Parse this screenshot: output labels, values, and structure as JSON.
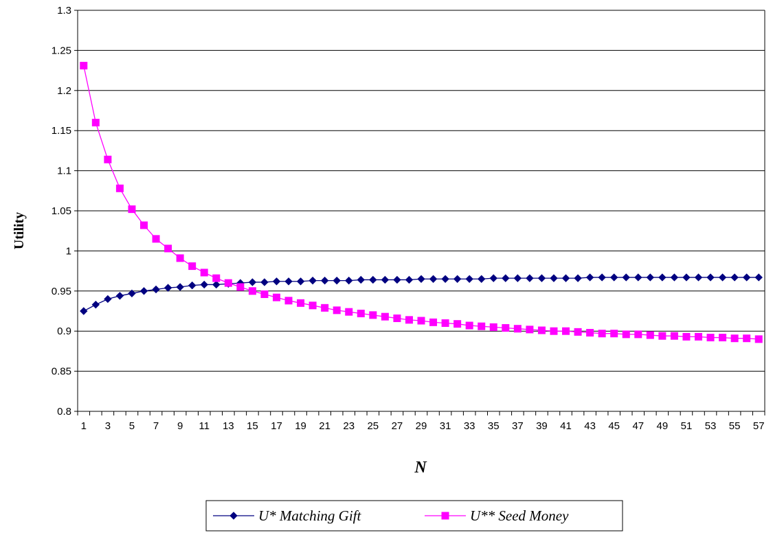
{
  "chart_data": {
    "type": "line",
    "xlabel": "N",
    "ylabel": "Utility",
    "ylim": [
      0.8,
      1.3
    ],
    "y_ticks": [
      "0.8",
      "0.85",
      "0.9",
      "0.95",
      "1",
      "1.05",
      "1.1",
      "1.15",
      "1.2",
      "1.25",
      "1.3"
    ],
    "x": [
      1,
      2,
      3,
      4,
      5,
      6,
      7,
      8,
      9,
      10,
      11,
      12,
      13,
      14,
      15,
      16,
      17,
      18,
      19,
      20,
      21,
      22,
      23,
      24,
      25,
      26,
      27,
      28,
      29,
      30,
      31,
      32,
      33,
      34,
      35,
      36,
      37,
      38,
      39,
      40,
      41,
      42,
      43,
      44,
      45,
      46,
      47,
      48,
      49,
      50,
      51,
      52,
      53,
      54,
      55,
      56,
      57
    ],
    "x_tick_labels": [
      "1",
      "3",
      "5",
      "7",
      "9",
      "11",
      "13",
      "15",
      "17",
      "19",
      "21",
      "23",
      "25",
      "27",
      "29",
      "31",
      "33",
      "35",
      "37",
      "39",
      "41",
      "43",
      "45",
      "47",
      "49",
      "51",
      "53",
      "55",
      "57"
    ],
    "grid": true,
    "legend_position": "bottom",
    "series": [
      {
        "name": "U* Matching Gift",
        "color": "#000080",
        "marker": "diamond",
        "values": [
          0.925,
          0.933,
          0.94,
          0.944,
          0.947,
          0.95,
          0.952,
          0.954,
          0.955,
          0.957,
          0.958,
          0.958,
          0.959,
          0.96,
          0.961,
          0.961,
          0.962,
          0.962,
          0.962,
          0.963,
          0.963,
          0.963,
          0.963,
          0.964,
          0.964,
          0.964,
          0.964,
          0.964,
          0.965,
          0.965,
          0.965,
          0.965,
          0.965,
          0.965,
          0.966,
          0.966,
          0.966,
          0.966,
          0.966,
          0.966,
          0.966,
          0.966,
          0.967,
          0.967,
          0.967,
          0.967,
          0.967,
          0.967,
          0.967,
          0.967,
          0.967,
          0.967,
          0.967,
          0.967,
          0.967,
          0.967,
          0.967
        ]
      },
      {
        "name": "U** Seed Money",
        "color": "#FF00FF",
        "marker": "square",
        "values": [
          1.231,
          1.16,
          1.114,
          1.078,
          1.052,
          1.032,
          1.015,
          1.003,
          0.991,
          0.981,
          0.973,
          0.966,
          0.96,
          0.955,
          0.95,
          0.946,
          0.942,
          0.938,
          0.935,
          0.932,
          0.929,
          0.926,
          0.924,
          0.922,
          0.92,
          0.918,
          0.916,
          0.914,
          0.913,
          0.911,
          0.91,
          0.909,
          0.907,
          0.906,
          0.905,
          0.904,
          0.903,
          0.902,
          0.901,
          0.9,
          0.9,
          0.899,
          0.898,
          0.897,
          0.897,
          0.896,
          0.896,
          0.895,
          0.894,
          0.894,
          0.893,
          0.893,
          0.892,
          0.892,
          0.891,
          0.891,
          0.89
        ]
      }
    ]
  }
}
